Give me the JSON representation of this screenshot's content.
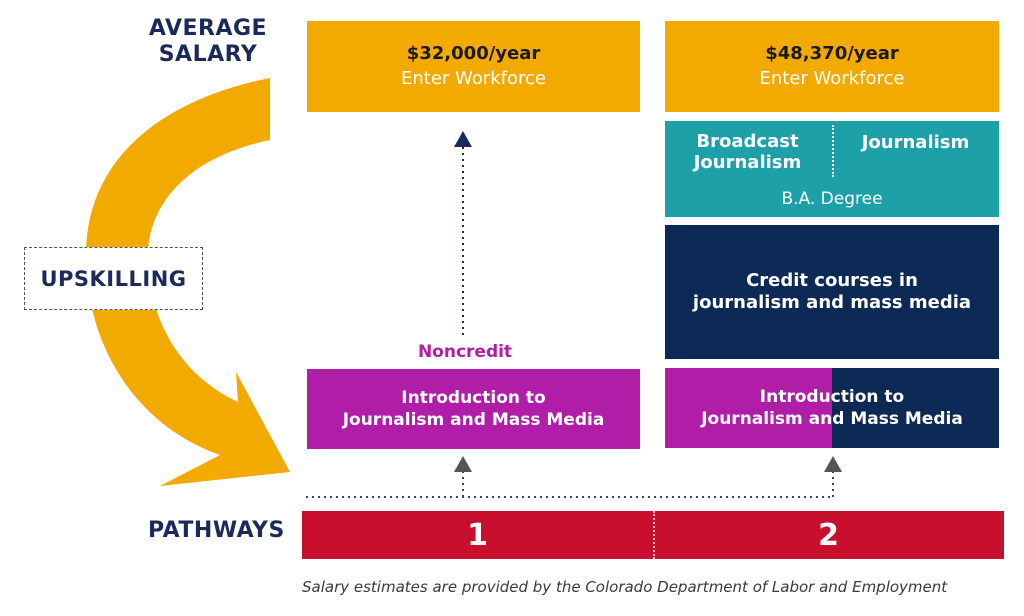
{
  "labels": {
    "average_salary": "AVERAGE SALARY",
    "pathways": "PATHWAYS",
    "upskilling": "UPSKILLING",
    "noncredit": "Noncredit"
  },
  "pathway1": {
    "salary": "$32,000/year",
    "workforce": "Enter Workforce",
    "intro_line1": "Introduction to",
    "intro_line2": "Journalism and Mass Media",
    "number": "1"
  },
  "pathway2": {
    "salary": "$48,370/year",
    "workforce": "Enter Workforce",
    "broadcast_line1": "Broadcast",
    "broadcast_line2": "Journalism",
    "journalism": "Journalism",
    "ba_degree": "B.A. Degree",
    "credit_line1": "Credit courses in",
    "credit_line2": "journalism and mass media",
    "intro_line1": "Introduction to",
    "intro_line2": "Journalism and Mass Media",
    "number": "2"
  },
  "footnote": "Salary estimates are provided by the Colorado Department of Labor and Employment",
  "colors": {
    "orange": "#f2a900",
    "teal": "#1ea0a9",
    "navy": "#0c2a55",
    "magenta": "#b01ea8",
    "red": "#c8102e",
    "label_navy": "#1b2a5a"
  }
}
